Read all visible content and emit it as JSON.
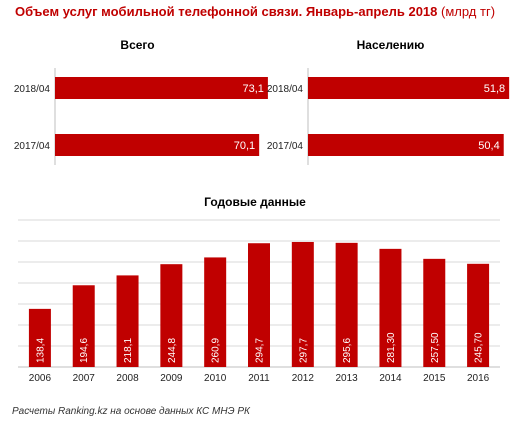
{
  "title": "Объем услуг мобильной телефонной связи. Январь-апрель 2018",
  "title_unit": "(млрд тг)",
  "footer": "Расчеты Ranking.kz на основе данных КС МНЭ РК",
  "colors": {
    "bar": "#c00000",
    "title": "#c00000",
    "grid": "#d9d9d9"
  },
  "chart_data": [
    {
      "type": "bar",
      "orientation": "horizontal",
      "title": "Всего",
      "categories": [
        "2018/04",
        "2017/04"
      ],
      "values": [
        73.1,
        70.1
      ],
      "value_labels": [
        "73,1",
        "70,1"
      ],
      "xlim": [
        0,
        80
      ]
    },
    {
      "type": "bar",
      "orientation": "horizontal",
      "title": "Населению",
      "categories": [
        "2018/04",
        "2017/04"
      ],
      "values": [
        51.8,
        50.4
      ],
      "value_labels": [
        "51,8",
        "50,4"
      ],
      "xlim": [
        0,
        60
      ]
    },
    {
      "type": "bar",
      "orientation": "vertical",
      "title": "Годовые данные",
      "categories": [
        "2006",
        "2007",
        "2008",
        "2009",
        "2010",
        "2011",
        "2012",
        "2013",
        "2014",
        "2015",
        "2016"
      ],
      "values": [
        138.4,
        194.6,
        218.1,
        244.8,
        260.9,
        294.7,
        297.7,
        295.6,
        281.3,
        257.5,
        245.7
      ],
      "value_labels": [
        "138,4",
        "194,6",
        "218,1",
        "244,8",
        "260,9",
        "294,7",
        "297,7",
        "295,6",
        "281,30",
        "257,50",
        "245,70"
      ],
      "ylim": [
        0,
        350
      ],
      "grid": true
    }
  ]
}
